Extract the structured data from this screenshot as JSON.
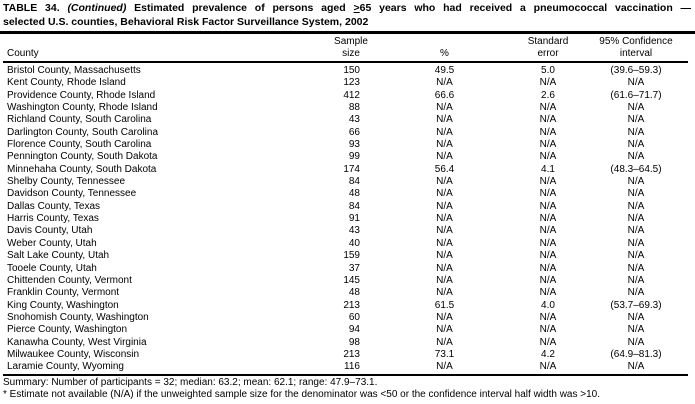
{
  "page": {
    "title": {
      "table_label": "TABLE 34.",
      "continued": "(Continued)",
      "before_symbol": "Estimated prevalence of persons aged",
      "geq_symbol": ">",
      "after_symbol": "65 years who had received a pneumococcal vaccination —",
      "line2": "selected U.S. counties, Behavioral Risk Factor Surveillance System, 2002"
    },
    "summary": "Summary: Number of participants = 32; median: 63.2; mean: 62.1; range: 47.9–73.1.",
    "footnote": "* Estimate not available (N/A) if the unweighted sample size for the denominator was <50 or the confidence interval half width was >10."
  },
  "table": {
    "columns": [
      {
        "key": "county",
        "line1": "",
        "line2": "County"
      },
      {
        "key": "sample_size",
        "line1": "Sample",
        "line2": "size"
      },
      {
        "key": "pct",
        "line1": "",
        "line2": "%"
      },
      {
        "key": "se",
        "line1": "Standard",
        "line2": "error"
      },
      {
        "key": "ci",
        "line1": "95% Confidence",
        "line2": "interval"
      }
    ],
    "rows": [
      {
        "county": "Bristol County, Massachusetts",
        "sample_size": "150",
        "pct": "49.5",
        "se": "5.0",
        "ci": "(39.6–59.3)"
      },
      {
        "county": "Kent County, Rhode Island",
        "sample_size": "123",
        "pct": "N/A",
        "se": "N/A",
        "ci": "N/A"
      },
      {
        "county": "Providence County, Rhode Island",
        "sample_size": "412",
        "pct": "66.6",
        "se": "2.6",
        "ci": "(61.6–71.7)"
      },
      {
        "county": "Washington County, Rhode Island",
        "sample_size": "88",
        "pct": "N/A",
        "se": "N/A",
        "ci": "N/A"
      },
      {
        "county": "Richland County, South Carolina",
        "sample_size": "43",
        "pct": "N/A",
        "se": "N/A",
        "ci": "N/A"
      },
      {
        "county": "Darlington County, South Carolina",
        "sample_size": "66",
        "pct": "N/A",
        "se": "N/A",
        "ci": "N/A"
      },
      {
        "county": "Florence County, South Carolina",
        "sample_size": "93",
        "pct": "N/A",
        "se": "N/A",
        "ci": "N/A"
      },
      {
        "county": "Pennington County, South Dakota",
        "sample_size": "99",
        "pct": "N/A",
        "se": "N/A",
        "ci": "N/A"
      },
      {
        "county": "Minnehaha County, South Dakota",
        "sample_size": "174",
        "pct": "56.4",
        "se": "4.1",
        "ci": "(48.3–64.5)"
      },
      {
        "county": "Shelby County, Tennessee",
        "sample_size": "84",
        "pct": "N/A",
        "se": "N/A",
        "ci": "N/A"
      },
      {
        "county": "Davidson County, Tennessee",
        "sample_size": "48",
        "pct": "N/A",
        "se": "N/A",
        "ci": "N/A"
      },
      {
        "county": "Dallas County, Texas",
        "sample_size": "84",
        "pct": "N/A",
        "se": "N/A",
        "ci": "N/A"
      },
      {
        "county": "Harris County, Texas",
        "sample_size": "91",
        "pct": "N/A",
        "se": "N/A",
        "ci": "N/A"
      },
      {
        "county": "Davis County, Utah",
        "sample_size": "43",
        "pct": "N/A",
        "se": "N/A",
        "ci": "N/A"
      },
      {
        "county": "Weber County, Utah",
        "sample_size": "40",
        "pct": "N/A",
        "se": "N/A",
        "ci": "N/A"
      },
      {
        "county": "Salt Lake County, Utah",
        "sample_size": "159",
        "pct": "N/A",
        "se": "N/A",
        "ci": "N/A"
      },
      {
        "county": "Tooele County, Utah",
        "sample_size": "37",
        "pct": "N/A",
        "se": "N/A",
        "ci": "N/A"
      },
      {
        "county": "Chittenden County, Vermont",
        "sample_size": "145",
        "pct": "N/A",
        "se": "N/A",
        "ci": "N/A"
      },
      {
        "county": "Franklin County, Vermont",
        "sample_size": "48",
        "pct": "N/A",
        "se": "N/A",
        "ci": "N/A"
      },
      {
        "county": "King County, Washington",
        "sample_size": "213",
        "pct": "61.5",
        "se": "4.0",
        "ci": "(53.7–69.3)"
      },
      {
        "county": "Snohomish County, Washington",
        "sample_size": "60",
        "pct": "N/A",
        "se": "N/A",
        "ci": "N/A"
      },
      {
        "county": "Pierce County, Washington",
        "sample_size": "94",
        "pct": "N/A",
        "se": "N/A",
        "ci": "N/A"
      },
      {
        "county": "Kanawha County, West Virginia",
        "sample_size": "98",
        "pct": "N/A",
        "se": "N/A",
        "ci": "N/A"
      },
      {
        "county": "Milwaukee County, Wisconsin",
        "sample_size": "213",
        "pct": "73.1",
        "se": "4.2",
        "ci": "(64.9–81.3)"
      },
      {
        "county": "Laramie County, Wyoming",
        "sample_size": "116",
        "pct": "N/A",
        "se": "N/A",
        "ci": "N/A"
      }
    ]
  }
}
